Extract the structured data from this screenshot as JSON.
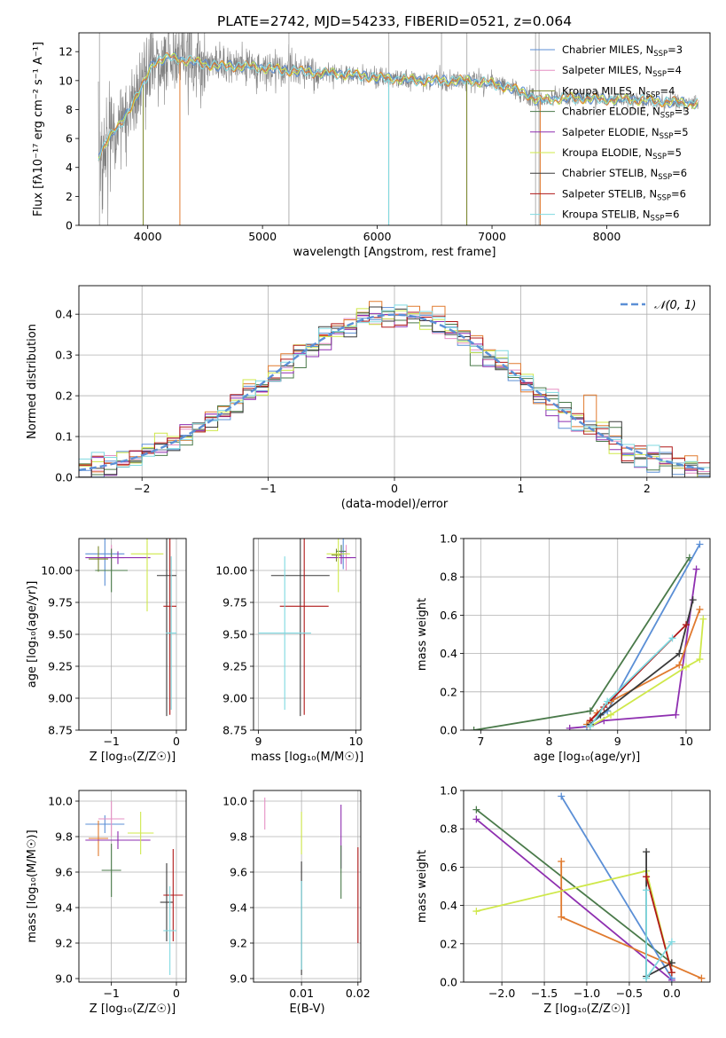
{
  "colors": {
    "Chabrier MILES": "#5b8fd6",
    "Salpeter MILES": "#e58fc4",
    "Kroupa MILES": "#7d8a2e",
    "Chabrier ELODIE": "#4a7a4a",
    "Salpeter ELODIE": "#8e2fb0",
    "Kroupa ELODIE": "#cfe84a",
    "Chabrier STELIB": "#3a3a3a",
    "Salpeter STELIB": "#b01818",
    "Kroupa STELIB": "#7fd9e0",
    "orange": "#e07a2e",
    "data": "#808080",
    "normal": "#5b8fd6"
  },
  "chart_data": [
    {
      "id": "spectrum",
      "type": "line",
      "title": "PLATE=2742, MJD=54233, FIBERID=0521, z=0.064",
      "xlabel": "wavelength [Angstrom, rest frame]",
      "ylabel": "Flux [fλ10⁻¹⁷ erg cm⁻² s⁻¹ A⁻¹]",
      "xlim": [
        3400,
        8900
      ],
      "ylim": [
        0,
        13.3
      ],
      "xticks": [
        4000,
        5000,
        6000,
        7000,
        8000
      ],
      "yticks": [
        0,
        2,
        4,
        6,
        8,
        10,
        12
      ],
      "grid": false,
      "legend_position": "upper-right",
      "legend": [
        {
          "name": "Chabrier MILES",
          "label": "Chabrier MILES, N",
          "sub": "SSP",
          "n": "=3"
        },
        {
          "name": "Salpeter MILES",
          "label": "Salpeter MILES, N",
          "sub": "SSP",
          "n": "=4"
        },
        {
          "name": "Kroupa MILES",
          "label": "Kroupa MILES, N",
          "sub": "SSP",
          "n": "=4"
        },
        {
          "name": "Chabrier ELODIE",
          "label": "Chabrier ELODIE, N",
          "sub": "SSP",
          "n": "=3"
        },
        {
          "name": "Salpeter ELODIE",
          "label": "Salpeter ELODIE, N",
          "sub": "SSP",
          "n": "=5"
        },
        {
          "name": "Kroupa ELODIE",
          "label": "Kroupa ELODIE, N",
          "sub": "SSP",
          "n": "=5"
        },
        {
          "name": "Chabrier STELIB",
          "label": "Chabrier STELIB, N",
          "sub": "SSP",
          "n": "=6"
        },
        {
          "name": "Salpeter STELIB",
          "label": "Salpeter STELIB, N",
          "sub": "SSP",
          "n": "=6"
        },
        {
          "name": "Kroupa STELIB",
          "label": "Kroupa STELIB, N",
          "sub": "SSP",
          "n": "=6"
        }
      ],
      "continuum": [
        [
          3570,
          4.8
        ],
        [
          3650,
          6.0
        ],
        [
          3750,
          6.8
        ],
        [
          3850,
          8.2
        ],
        [
          3950,
          9.5
        ],
        [
          4050,
          11.3
        ],
        [
          4200,
          11.6
        ],
        [
          4400,
          11.3
        ],
        [
          4600,
          11.0
        ],
        [
          4800,
          11.0
        ],
        [
          5000,
          10.9
        ],
        [
          5200,
          10.7
        ],
        [
          5400,
          10.6
        ],
        [
          5600,
          10.5
        ],
        [
          5800,
          10.4
        ],
        [
          6000,
          10.2
        ],
        [
          6200,
          10.1
        ],
        [
          6400,
          10.0
        ],
        [
          6600,
          10.0
        ],
        [
          6800,
          10.0
        ],
        [
          7000,
          9.8
        ],
        [
          7200,
          9.4
        ],
        [
          7300,
          9.1
        ],
        [
          7400,
          8.6
        ],
        [
          7500,
          8.7
        ],
        [
          7700,
          8.8
        ],
        [
          8000,
          8.7
        ],
        [
          8200,
          8.7
        ],
        [
          8400,
          8.6
        ],
        [
          8600,
          8.5
        ],
        [
          8800,
          8.4
        ]
      ]
    },
    {
      "id": "residuals",
      "type": "histogram",
      "xlabel": "(data-model)/error",
      "ylabel": "Normed distribution",
      "xlim": [
        -2.5,
        2.5
      ],
      "ylim": [
        0,
        0.47
      ],
      "xticks": [
        -2,
        -1,
        0,
        1,
        2
      ],
      "yticks": [
        0.0,
        0.1,
        0.2,
        0.3,
        0.4
      ],
      "grid": true,
      "legend_position": "upper-right",
      "reference_label": "𝒩(0, 1)",
      "bin_width": 0.1
    },
    {
      "id": "age-vs-z",
      "type": "errorbar",
      "xlabel": "Z [log₁₀(Z/Z☉)]",
      "ylabel": "age  [log₁₀(age/yr)]",
      "xlim": [
        -1.5,
        0.15
      ],
      "ylim": [
        8.75,
        10.25
      ],
      "xticks": [
        -1,
        0
      ],
      "yticks": [
        8.75,
        9.0,
        9.25,
        9.5,
        9.75,
        10.0
      ],
      "grid": true,
      "points": [
        {
          "series": "Chabrier MILES",
          "x": -1.1,
          "xerr": 0.3,
          "y": 10.13,
          "yerr": 0.25
        },
        {
          "series": "Salpeter MILES",
          "x": -1.0,
          "xerr": 0.2,
          "y": 10.1,
          "yerr": 0.1
        },
        {
          "series": "Kroupa MILES",
          "x": -1.2,
          "xerr": 0.15,
          "y": 10.09,
          "yerr": 0.1
        },
        {
          "series": "Chabrier ELODIE",
          "x": -1.0,
          "xerr": 0.25,
          "y": 10.0,
          "yerr": 0.17
        },
        {
          "series": "Salpeter ELODIE",
          "x": -0.9,
          "xerr": 0.5,
          "y": 10.1,
          "yerr": 0.05
        },
        {
          "series": "Kroupa ELODIE",
          "x": -0.45,
          "xerr": 0.25,
          "y": 10.13,
          "yerr": 0.45
        },
        {
          "series": "Chabrier STELIB",
          "x": -0.15,
          "xerr": 0.15,
          "y": 9.96,
          "yerr": 1.1
        },
        {
          "series": "Salpeter STELIB",
          "x": -0.1,
          "xerr": 0.1,
          "y": 9.72,
          "yerr": 0.85
        },
        {
          "series": "Kroupa STELIB",
          "x": -0.08,
          "xerr": 0.08,
          "y": 9.51,
          "yerr": 0.6
        }
      ]
    },
    {
      "id": "age-vs-mass",
      "type": "errorbar",
      "xlabel": "mass [log₁₀(M/M☉)]",
      "ylabel": "",
      "xlim": [
        8.95,
        10.05
      ],
      "ylim": [
        8.75,
        10.25
      ],
      "xticks": [
        9,
        10
      ],
      "yticks": [
        8.75,
        9.0,
        9.25,
        9.5,
        9.75,
        10.0
      ],
      "grid": true,
      "points": [
        {
          "series": "Chabrier MILES",
          "x": 9.87,
          "xerr": 0.05,
          "y": 10.13,
          "yerr": 0.12
        },
        {
          "series": "Salpeter MILES",
          "x": 9.9,
          "xerr": 0.05,
          "y": 10.1,
          "yerr": 0.1
        },
        {
          "series": "Kroupa MILES",
          "x": 9.8,
          "xerr": 0.05,
          "y": 10.12,
          "yerr": 0.05
        },
        {
          "series": "Chabrier ELODIE",
          "x": 9.85,
          "xerr": 0.05,
          "y": 10.15,
          "yerr": 0.05
        },
        {
          "series": "Salpeter ELODIE",
          "x": 9.85,
          "xerr": 0.15,
          "y": 10.1,
          "yerr": 0.05
        },
        {
          "series": "Kroupa ELODIE",
          "x": 9.82,
          "xerr": 0.12,
          "y": 10.13,
          "yerr": 0.3
        },
        {
          "series": "Chabrier STELIB",
          "x": 9.43,
          "xerr": 0.3,
          "y": 9.96,
          "yerr": 1.1
        },
        {
          "series": "Salpeter STELIB",
          "x": 9.47,
          "xerr": 0.25,
          "y": 9.72,
          "yerr": 0.85
        },
        {
          "series": "Kroupa STELIB",
          "x": 9.27,
          "xerr": 0.27,
          "y": 9.51,
          "yerr": 0.6
        }
      ]
    },
    {
      "id": "weight-vs-age",
      "type": "line",
      "xlabel": "age  [log₁₀(age/yr)]",
      "ylabel": "mass weight",
      "xlim": [
        6.75,
        10.35
      ],
      "ylim": [
        0,
        1.0
      ],
      "xticks": [
        7,
        8,
        9,
        10
      ],
      "yticks": [
        0.0,
        0.2,
        0.4,
        0.6,
        0.8,
        1.0
      ],
      "grid": true,
      "series": [
        {
          "name": "Chabrier ELODIE",
          "points": [
            [
              6.9,
              0.0
            ],
            [
              8.6,
              0.1
            ],
            [
              10.05,
              0.9
            ]
          ]
        },
        {
          "name": "Salpeter ELODIE",
          "points": [
            [
              8.3,
              0.01
            ],
            [
              8.6,
              0.02
            ],
            [
              8.8,
              0.05
            ],
            [
              9.85,
              0.08
            ],
            [
              10.15,
              0.84
            ]
          ]
        },
        {
          "name": "Chabrier MILES",
          "points": [
            [
              8.55,
              0.02
            ],
            [
              8.85,
              0.1
            ],
            [
              10.2,
              0.97
            ]
          ]
        },
        {
          "name": "orange",
          "points": [
            [
              8.55,
              0.03
            ],
            [
              8.7,
              0.09
            ],
            [
              8.9,
              0.15
            ],
            [
              9.9,
              0.34
            ],
            [
              10.2,
              0.63
            ]
          ]
        },
        {
          "name": "Kroupa ELODIE",
          "points": [
            [
              8.6,
              0.02
            ],
            [
              8.9,
              0.08
            ],
            [
              10.0,
              0.33
            ],
            [
              10.2,
              0.37
            ],
            [
              10.25,
              0.58
            ]
          ]
        },
        {
          "name": "Chabrier STELIB",
          "points": [
            [
              8.6,
              0.03
            ],
            [
              8.75,
              0.08
            ],
            [
              9.9,
              0.4
            ],
            [
              10.1,
              0.68
            ]
          ]
        },
        {
          "name": "Salpeter STELIB",
          "points": [
            [
              8.6,
              0.05
            ],
            [
              8.8,
              0.12
            ],
            [
              10.0,
              0.55
            ]
          ]
        },
        {
          "name": "Kroupa STELIB",
          "points": [
            [
              8.6,
              0.02
            ],
            [
              8.85,
              0.15
            ],
            [
              9.8,
              0.48
            ]
          ]
        }
      ]
    },
    {
      "id": "mass-vs-z",
      "type": "errorbar",
      "xlabel": "Z [log₁₀(Z/Z☉)]",
      "ylabel": "mass [log₁₀(M/M☉)]",
      "xlim": [
        -1.5,
        0.15
      ],
      "ylim": [
        8.98,
        10.06
      ],
      "xticks": [
        -1,
        0
      ],
      "yticks": [
        9.0,
        9.2,
        9.4,
        9.6,
        9.8,
        10.0
      ],
      "grid": true,
      "points": [
        {
          "series": "Chabrier MILES",
          "x": -1.1,
          "xerr": 0.3,
          "y": 9.87,
          "yerr": 0.05
        },
        {
          "series": "Salpeter MILES",
          "x": -1.0,
          "xerr": 0.2,
          "y": 9.9,
          "yerr": 0.1
        },
        {
          "series": "orange",
          "x": -1.2,
          "xerr": 0.15,
          "y": 9.79,
          "yerr": 0.1
        },
        {
          "series": "Chabrier ELODIE",
          "x": -1.0,
          "xerr": 0.15,
          "y": 9.61,
          "yerr": 0.15
        },
        {
          "series": "Salpeter ELODIE",
          "x": -0.9,
          "xerr": 0.5,
          "y": 9.78,
          "yerr": 0.05
        },
        {
          "series": "Kroupa ELODIE",
          "x": -0.55,
          "xerr": 0.2,
          "y": 9.82,
          "yerr": 0.12
        },
        {
          "series": "Chabrier STELIB",
          "x": -0.15,
          "xerr": 0.1,
          "y": 9.43,
          "yerr": 0.22
        },
        {
          "series": "Salpeter STELIB",
          "x": -0.05,
          "xerr": 0.15,
          "y": 9.47,
          "yerr": 0.26
        },
        {
          "series": "Kroupa STELIB",
          "x": -0.1,
          "xerr": 0.1,
          "y": 9.27,
          "yerr": 0.25
        }
      ]
    },
    {
      "id": "mass-vs-ebv",
      "type": "errorbar",
      "xlabel": "E(B-V)",
      "ylabel": "",
      "xlim": [
        0.0015,
        0.0205
      ],
      "ylim": [
        8.98,
        10.06
      ],
      "xticks": [
        0.01,
        0.02
      ],
      "yticks": [
        9.0,
        9.2,
        9.4,
        9.6,
        9.8,
        10.0
      ],
      "grid": true,
      "points": [
        {
          "series": "Salpeter MILES",
          "x": 0.0035,
          "xerr": 0,
          "y": 9.93,
          "yerr": 0.09
        },
        {
          "series": "Kroupa ELODIE",
          "x": 0.01,
          "xerr": 0,
          "y": 9.82,
          "yerr": 0.12
        },
        {
          "series": "Chabrier STELIB",
          "x": 0.01,
          "xerr": 0,
          "y": 9.34,
          "yerr": 0.32
        },
        {
          "series": "Kroupa STELIB",
          "x": 0.01,
          "xerr": 0,
          "y": 9.3,
          "yerr": 0.25
        },
        {
          "series": "Salpeter ELODIE",
          "x": 0.017,
          "xerr": 0,
          "y": 9.8,
          "yerr": 0.18
        },
        {
          "series": "Chabrier ELODIE",
          "x": 0.017,
          "xerr": 0,
          "y": 9.6,
          "yerr": 0.15
        },
        {
          "series": "Salpeter STELIB",
          "x": 0.02,
          "xerr": 0,
          "y": 9.47,
          "yerr": 0.27
        }
      ]
    },
    {
      "id": "weight-vs-z",
      "type": "line",
      "xlabel": "Z [log₁₀(Z/Z☉)]",
      "ylabel": "mass weight",
      "xlim": [
        -2.45,
        0.45
      ],
      "ylim": [
        0,
        1.0
      ],
      "xticks": [
        -2.0,
        -1.5,
        -1.0,
        -0.5,
        0.0
      ],
      "yticks": [
        0.0,
        0.2,
        0.4,
        0.6,
        0.8,
        1.0
      ],
      "grid": true,
      "series": [
        {
          "name": "Chabrier ELODIE",
          "points": [
            [
              -2.3,
              0.9
            ],
            [
              0.0,
              0.1
            ]
          ]
        },
        {
          "name": "Salpeter ELODIE",
          "points": [
            [
              -2.3,
              0.85
            ],
            [
              0.0,
              0.01
            ]
          ]
        },
        {
          "name": "Chabrier MILES",
          "points": [
            [
              -1.3,
              0.97
            ],
            [
              0.0,
              0.02
            ]
          ]
        },
        {
          "name": "orange",
          "points": [
            [
              -1.3,
              0.63
            ],
            [
              -1.3,
              0.34
            ],
            [
              0.35,
              0.02
            ]
          ]
        },
        {
          "name": "Kroupa ELODIE",
          "points": [
            [
              -2.3,
              0.37
            ],
            [
              -0.3,
              0.58
            ],
            [
              0.0,
              0.05
            ]
          ]
        },
        {
          "name": "Chabrier STELIB",
          "points": [
            [
              -0.3,
              0.68
            ],
            [
              -0.3,
              0.03
            ],
            [
              0.0,
              0.1
            ]
          ]
        },
        {
          "name": "Salpeter STELIB",
          "points": [
            [
              -0.3,
              0.55
            ],
            [
              0.0,
              0.05
            ]
          ]
        },
        {
          "name": "Kroupa STELIB",
          "points": [
            [
              -0.3,
              0.48
            ],
            [
              -0.3,
              0.02
            ],
            [
              0.0,
              0.21
            ]
          ]
        }
      ]
    }
  ]
}
